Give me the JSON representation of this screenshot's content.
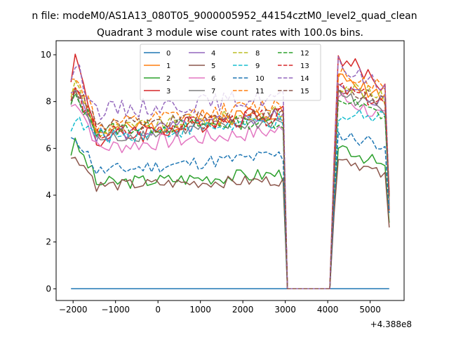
{
  "chart_data": {
    "type": "line",
    "suptitle": "n file: modeM0/AS1A13_080T05_9000005952_44154cztM0_level2_quad_clean",
    "title": "Quadrant 3 module wise count rates with 100.0s bins.",
    "xlabel": "",
    "ylabel": "",
    "x_offset_label": "+4.388e8",
    "xlim": [
      -2400,
      5800
    ],
    "ylim": [
      -0.5,
      10.6
    ],
    "xticks": [
      -2000,
      -1000,
      0,
      1000,
      2000,
      3000,
      4000,
      5000
    ],
    "xtick_labels": [
      "−2000",
      "−1000",
      "0",
      "1000",
      "2000",
      "3000",
      "4000",
      "5000"
    ],
    "yticks": [
      0,
      2,
      4,
      6,
      8,
      10
    ],
    "ytick_labels": [
      "0",
      "2",
      "4",
      "6",
      "8",
      "10"
    ],
    "legend": {
      "location": "top-center",
      "columns": 4
    },
    "x_start": -2050,
    "x_step": 100,
    "gap_start": 3050,
    "gap_end": 4050,
    "x_end": 5450,
    "series": [
      {
        "name": "0",
        "color": "#1f77b4",
        "dash": "solid",
        "level": 0.0,
        "peak": 0.0,
        "post": 0.0,
        "noise": 0.0,
        "seed": 1
      },
      {
        "name": "1",
        "color": "#ff7f0e",
        "dash": "solid",
        "level": 6.6,
        "peak": 9.0,
        "post": 8.3,
        "noise": 0.35,
        "seed": 2
      },
      {
        "name": "2",
        "color": "#2ca02c",
        "dash": "solid",
        "level": 4.5,
        "peak": 6.3,
        "post": 5.2,
        "noise": 0.3,
        "seed": 3
      },
      {
        "name": "3",
        "color": "#d62728",
        "dash": "solid",
        "level": 6.3,
        "peak": 10.1,
        "post": 8.6,
        "noise": 0.4,
        "seed": 4
      },
      {
        "name": "4",
        "color": "#9467bd",
        "dash": "solid",
        "level": 6.5,
        "peak": 8.6,
        "post": 8.0,
        "noise": 0.35,
        "seed": 5
      },
      {
        "name": "5",
        "color": "#8c564b",
        "dash": "solid",
        "level": 4.4,
        "peak": 5.8,
        "post": 4.8,
        "noise": 0.25,
        "seed": 6
      },
      {
        "name": "6",
        "color": "#e377c2",
        "dash": "solid",
        "level": 6.0,
        "peak": 8.3,
        "post": 7.3,
        "noise": 0.35,
        "seed": 7
      },
      {
        "name": "7",
        "color": "#7f7f7f",
        "dash": "solid",
        "level": 6.4,
        "peak": 8.4,
        "post": 7.7,
        "noise": 0.3,
        "seed": 8
      },
      {
        "name": "8",
        "color": "#bcbd22",
        "dash": "dashed",
        "level": 6.7,
        "peak": 8.9,
        "post": 8.1,
        "noise": 0.35,
        "seed": 9
      },
      {
        "name": "9",
        "color": "#17becf",
        "dash": "dashed",
        "level": 6.5,
        "peak": 7.2,
        "post": 7.6,
        "noise": 0.35,
        "seed": 10
      },
      {
        "name": "10",
        "color": "#1f77b4",
        "dash": "dashed",
        "level": 5.0,
        "peak": 6.6,
        "post": 6.2,
        "noise": 0.3,
        "seed": 11
      },
      {
        "name": "11",
        "color": "#ff7f0e",
        "dash": "dashed",
        "level": 6.9,
        "peak": 9.4,
        "post": 8.6,
        "noise": 0.35,
        "seed": 12
      },
      {
        "name": "12",
        "color": "#2ca02c",
        "dash": "dashed",
        "level": 6.8,
        "peak": 8.2,
        "post": 7.4,
        "noise": 0.3,
        "seed": 13
      },
      {
        "name": "13",
        "color": "#d62728",
        "dash": "dashed",
        "level": 6.6,
        "peak": 8.6,
        "post": 7.9,
        "noise": 0.35,
        "seed": 14
      },
      {
        "name": "14",
        "color": "#9467bd",
        "dash": "dashed",
        "level": 7.6,
        "peak": 9.6,
        "post": 8.6,
        "noise": 0.4,
        "seed": 15
      },
      {
        "name": "15",
        "color": "#8c564b",
        "dash": "dashed",
        "level": 6.9,
        "peak": 8.7,
        "post": 8.0,
        "noise": 0.3,
        "seed": 16
      }
    ]
  }
}
